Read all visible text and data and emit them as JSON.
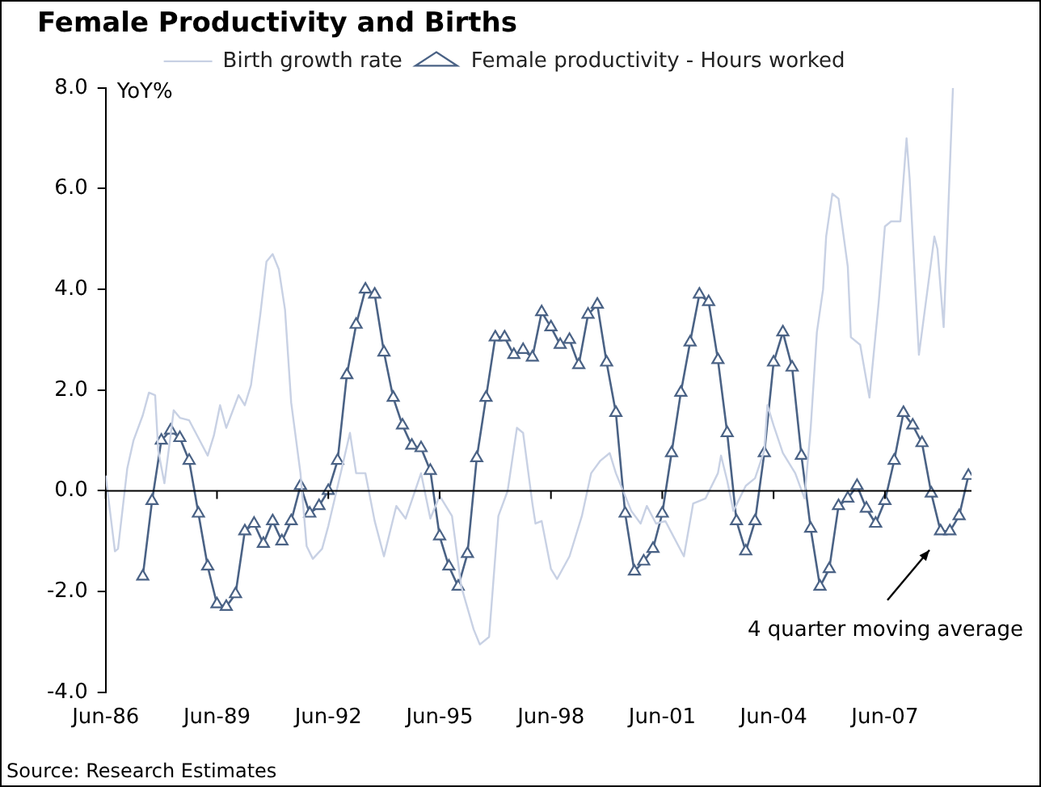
{
  "chart_data": {
    "type": "line",
    "title": "Female Productivity and Births",
    "ylabel": "YoY%",
    "xlim": [
      "1986-06",
      "2009-10"
    ],
    "xticks": [
      {
        "value": "1986-06",
        "label": "Jun-86"
      },
      {
        "value": "1989-06",
        "label": "Jun-89"
      },
      {
        "value": "1992-06",
        "label": "Jun-92"
      },
      {
        "value": "1995-06",
        "label": "Jun-95"
      },
      {
        "value": "1998-06",
        "label": "Jun-98"
      },
      {
        "value": "2001-06",
        "label": "Jun-01"
      },
      {
        "value": "2004-06",
        "label": "Jun-04"
      },
      {
        "value": "2007-06",
        "label": "Jun-07"
      }
    ],
    "ylim": [
      -4,
      8
    ],
    "yticks": [
      {
        "value": -4,
        "label": "-4.0"
      },
      {
        "value": -2,
        "label": "-2.0"
      },
      {
        "value": 0,
        "label": "0.0"
      },
      {
        "value": 2,
        "label": "2.0"
      },
      {
        "value": 4,
        "label": "4.0"
      },
      {
        "value": 6,
        "label": "6.0"
      },
      {
        "value": 8,
        "label": "8.0"
      }
    ],
    "grid": false,
    "legend": "top",
    "ref_lines": [
      {
        "axis": "y",
        "value": 0,
        "color": "#000000"
      }
    ],
    "series": [
      {
        "name": "Birth growth rate",
        "color": "#c8d1e4",
        "marker": "none",
        "x": [
          "1986-06",
          "1986-09",
          "1986-10",
          "1987-01",
          "1987-03",
          "1987-06",
          "1987-08",
          "1987-10",
          "1987-11",
          "1988-01",
          "1988-03",
          "1988-04",
          "1988-06",
          "1988-09",
          "1988-12",
          "1989-03",
          "1989-05",
          "1989-07",
          "1989-09",
          "1990-01",
          "1990-03",
          "1990-05",
          "1990-08",
          "1990-10",
          "1990-12",
          "1991-02",
          "1991-04",
          "1991-06",
          "1991-09",
          "1991-11",
          "1992-01",
          "1992-04",
          "1992-06",
          "1992-10",
          "1993-01",
          "1993-03",
          "1993-06",
          "1993-09",
          "1993-12",
          "1994-04",
          "1994-07",
          "1994-12",
          "1995-03",
          "1995-06",
          "1995-10",
          "1996-01",
          "1996-05",
          "1996-07",
          "1996-10",
          "1997-01",
          "1997-04",
          "1997-07",
          "1997-09",
          "1997-12",
          "1998-01",
          "1998-03",
          "1998-06",
          "1998-08",
          "1998-12",
          "1999-04",
          "1999-07",
          "1999-10",
          "2000-01",
          "2000-03",
          "2000-08",
          "2000-11",
          "2001-01",
          "2001-04",
          "2001-07",
          "2002-01",
          "2002-04",
          "2002-08",
          "2002-12",
          "2003-01",
          "2003-03",
          "2003-05",
          "2003-09",
          "2003-12",
          "2004-03",
          "2004-04",
          "2004-06",
          "2004-09",
          "2005-01",
          "2005-04",
          "2005-06",
          "2005-08",
          "2005-10",
          "2005-11",
          "2006-01",
          "2006-03",
          "2006-06",
          "2006-07",
          "2006-10",
          "2007-01",
          "2007-04",
          "2007-06",
          "2007-08",
          "2007-11",
          "2008-01",
          "2008-02",
          "2008-04",
          "2008-05",
          "2008-08",
          "2008-10",
          "2008-11",
          "2009-01",
          "2009-02",
          "2009-04"
        ],
        "values": [
          0.3,
          -1.2,
          -1.15,
          0.45,
          1.0,
          1.5,
          1.95,
          1.9,
          0.8,
          0.15,
          1.1,
          1.6,
          1.45,
          1.4,
          1.05,
          0.7,
          1.1,
          1.7,
          1.25,
          1.9,
          1.7,
          2.1,
          3.5,
          4.55,
          4.7,
          4.4,
          3.6,
          1.75,
          0.35,
          -1.1,
          -1.35,
          -1.15,
          -0.7,
          0.35,
          1.15,
          0.35,
          0.35,
          -0.6,
          -1.3,
          -0.3,
          -0.55,
          0.35,
          -0.55,
          -0.1,
          -0.5,
          -1.9,
          -2.75,
          -3.05,
          -2.9,
          -0.5,
          0,
          1.25,
          1.15,
          -0.25,
          -0.65,
          -0.6,
          -1.55,
          -1.75,
          -1.3,
          -0.5,
          0.35,
          0.6,
          0.75,
          0.35,
          -0.4,
          -0.65,
          -0.3,
          -0.65,
          -0.6,
          -1.3,
          -0.25,
          -0.15,
          0.35,
          0.7,
          0.2,
          -0.4,
          0.1,
          0.25,
          0.8,
          1.7,
          1.3,
          0.75,
          0.35,
          -0.15,
          1.25,
          3.15,
          4.0,
          5.05,
          5.9,
          5.8,
          4.45,
          3.05,
          2.9,
          1.85,
          3.75,
          5.25,
          5.35,
          5.35,
          7.0,
          6.2,
          3.85,
          2.7,
          4.1,
          5.05,
          4.8,
          3.25,
          4.8,
          8.0
        ]
      },
      {
        "name": "Female productivity - Hours worked",
        "color": "#4a6285",
        "marker": "triangle",
        "x": [
          "1987-06",
          "1987-09",
          "1987-12",
          "1988-03",
          "1988-06",
          "1988-09",
          "1988-12",
          "1989-03",
          "1989-06",
          "1989-09",
          "1989-12",
          "1990-03",
          "1990-06",
          "1990-09",
          "1990-12",
          "1991-03",
          "1991-06",
          "1991-09",
          "1991-12",
          "1992-03",
          "1992-06",
          "1992-09",
          "1992-12",
          "1993-03",
          "1993-06",
          "1993-09",
          "1993-12",
          "1994-03",
          "1994-06",
          "1994-09",
          "1994-12",
          "1995-03",
          "1995-06",
          "1995-09",
          "1995-12",
          "1996-03",
          "1996-06",
          "1996-09",
          "1996-12",
          "1997-03",
          "1997-06",
          "1997-09",
          "1997-12",
          "1998-03",
          "1998-06",
          "1998-09",
          "1998-12",
          "1999-03",
          "1999-06",
          "1999-09",
          "1999-12",
          "2000-03",
          "2000-06",
          "2000-09",
          "2000-12",
          "2001-03",
          "2001-06",
          "2001-09",
          "2001-12",
          "2002-03",
          "2002-06",
          "2002-09",
          "2002-12",
          "2003-03",
          "2003-06",
          "2003-09",
          "2003-12",
          "2004-03",
          "2004-06",
          "2004-09",
          "2004-12",
          "2005-03",
          "2005-06",
          "2005-09",
          "2005-12",
          "2006-03",
          "2006-06",
          "2006-09",
          "2006-12",
          "2007-03",
          "2007-06",
          "2007-09",
          "2007-12",
          "2008-03",
          "2008-06",
          "2008-09",
          "2008-12",
          "2009-03",
          "2009-06",
          "2009-09"
        ],
        "values": [
          -1.7,
          -0.2,
          1.0,
          1.2,
          1.05,
          0.6,
          -0.45,
          -1.5,
          -2.25,
          -2.3,
          -2.05,
          -0.8,
          -0.65,
          -1.05,
          -0.6,
          -1.0,
          -0.6,
          0.1,
          -0.45,
          -0.3,
          0.0,
          0.6,
          2.3,
          3.3,
          4.0,
          3.9,
          2.75,
          1.85,
          1.3,
          0.9,
          0.85,
          0.4,
          -0.9,
          -1.5,
          -1.9,
          -1.25,
          0.65,
          1.85,
          3.05,
          3.05,
          2.7,
          2.8,
          2.65,
          3.55,
          3.25,
          2.9,
          3.0,
          2.5,
          3.5,
          3.7,
          2.55,
          1.55,
          -0.45,
          -1.6,
          -1.4,
          -1.15,
          -0.45,
          0.75,
          1.95,
          2.95,
          3.9,
          3.75,
          2.6,
          1.15,
          -0.6,
          -1.2,
          -0.6,
          0.75,
          2.55,
          3.15,
          2.45,
          0.7,
          -0.75,
          -1.9,
          -1.55,
          -0.3,
          -0.15,
          0.1,
          -0.35,
          -0.65,
          -0.2,
          0.6,
          1.55,
          1.3,
          0.95,
          -0.05,
          -0.8,
          -0.8,
          -0.5,
          0.3
        ]
      }
    ],
    "annotations": [
      "4 quarter moving average",
      "Source: Research Estimates"
    ]
  }
}
